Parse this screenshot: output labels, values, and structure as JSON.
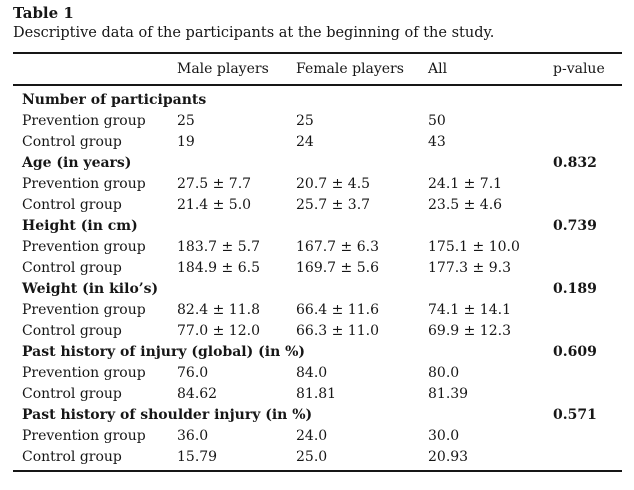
{
  "title": "Table 1",
  "caption": "Descriptive data of the participants at the beginning of the study.",
  "columns": {
    "row_label": "",
    "male": "Male players",
    "female": "Female players",
    "all": "All",
    "p_value": "p-value"
  },
  "colors": {
    "text": "#161616",
    "rule": "#161616",
    "background": "#ffffff"
  },
  "sections": [
    {
      "label": "Number of participants",
      "p_value": "",
      "rows": [
        {
          "label": "Prevention group",
          "male": "25",
          "female": "25",
          "all": "50"
        },
        {
          "label": "Control group",
          "male": "19",
          "female": "24",
          "all": "43"
        }
      ]
    },
    {
      "label": "Age (in years)",
      "p_value": "0.832",
      "rows": [
        {
          "label": "Prevention group",
          "male": "27.5 ± 7.7",
          "female": "20.7 ± 4.5",
          "all": "24.1 ± 7.1"
        },
        {
          "label": "Control group",
          "male": "21.4 ± 5.0",
          "female": "25.7 ± 3.7",
          "all": "23.5 ± 4.6"
        }
      ]
    },
    {
      "label": "Height (in cm)",
      "p_value": "0.739",
      "rows": [
        {
          "label": "Prevention group",
          "male": "183.7 ± 5.7",
          "female": "167.7 ± 6.3",
          "all": "175.1 ± 10.0"
        },
        {
          "label": "Control group",
          "male": "184.9 ± 6.5",
          "female": "169.7 ± 5.6",
          "all": "177.3 ± 9.3"
        }
      ]
    },
    {
      "label": "Weight (in kilo’s)",
      "p_value": "0.189",
      "rows": [
        {
          "label": "Prevention group",
          "male": "82.4 ± 11.8",
          "female": "66.4 ± 11.6",
          "all": "74.1 ± 14.1"
        },
        {
          "label": "Control group",
          "male": "77.0 ± 12.0",
          "female": "66.3 ± 11.0",
          "all": "69.9 ± 12.3"
        }
      ]
    },
    {
      "label": "Past history of injury (global) (in %)",
      "p_value": "0.609",
      "rows": [
        {
          "label": "Prevention group",
          "male": "76.0",
          "female": "84.0",
          "all": "80.0"
        },
        {
          "label": "Control group",
          "male": "84.62",
          "female": "81.81",
          "all": "81.39"
        }
      ]
    },
    {
      "label": "Past history of shoulder injury (in %)",
      "p_value": "0.571",
      "rows": [
        {
          "label": "Prevention group",
          "male": "36.0",
          "female": "24.0",
          "all": "30.0"
        },
        {
          "label": "Control group",
          "male": "15.79",
          "female": "25.0",
          "all": "20.93"
        }
      ]
    }
  ]
}
